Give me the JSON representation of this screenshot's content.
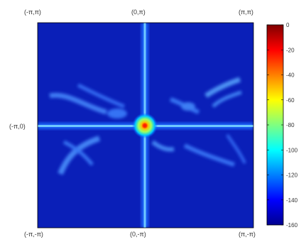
{
  "chart_data": {
    "type": "heatmap",
    "title": "",
    "xlabel": "",
    "ylabel": "",
    "xlim": [
      "-π",
      "π"
    ],
    "ylim": [
      "-π",
      "π"
    ],
    "corner_labels": {
      "top_left": "(-π,π)",
      "top_center": "(0,π)",
      "top_right": "(π,π)",
      "middle_left": "(-π,0)",
      "bottom_left": "(-π,-π)",
      "bottom_center": "(0,-π)",
      "bottom_right": "(π,-π)"
    },
    "colorbar": {
      "colormap": "jet",
      "min": -160,
      "max": 0,
      "ticks": [
        "0",
        "-20",
        "-40",
        "-60",
        "-80",
        "-100",
        "-120",
        "-140",
        "-160"
      ]
    },
    "features": {
      "peak_value": 0,
      "background_value": -150,
      "axis_lines_value": -110,
      "diffuse_streaks_value": -120
    },
    "legend_position": "right",
    "grid": false
  }
}
